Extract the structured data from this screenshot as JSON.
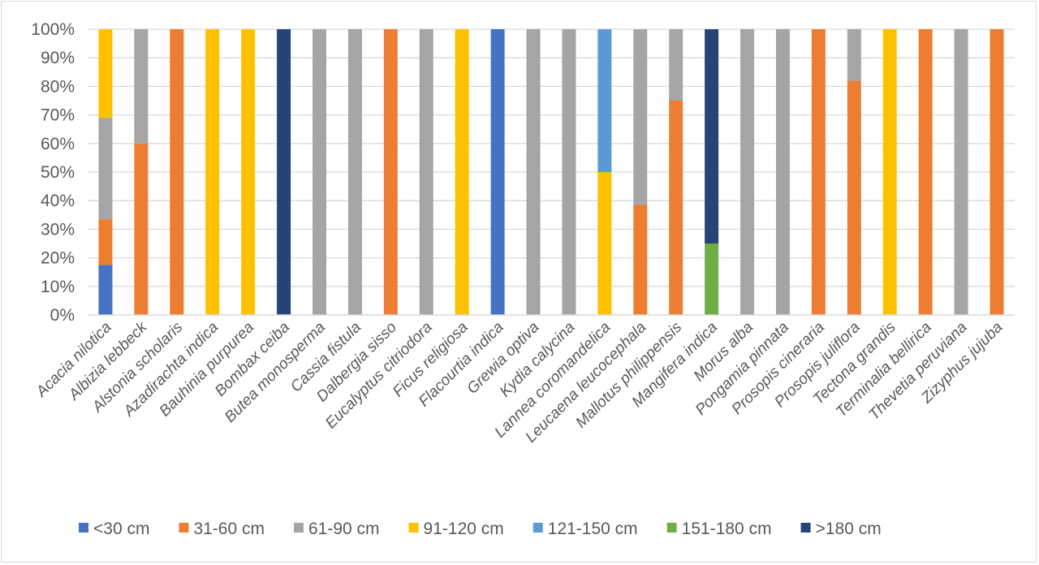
{
  "chart_data": {
    "type": "bar",
    "stacked": "percent",
    "title": "",
    "xlabel": "",
    "ylabel": "",
    "ylim": [
      0,
      100
    ],
    "yticks": [
      "0%",
      "10%",
      "20%",
      "30%",
      "40%",
      "50%",
      "60%",
      "70%",
      "80%",
      "90%",
      "100%"
    ],
    "grid": true,
    "legend_position": "bottom",
    "categories": [
      "Acacia nilotica",
      "Albizia lebbeck",
      "Alstonia scholaris",
      "Azadirachta indica",
      "Bauhinia purpurea",
      "Bombax ceiba",
      "Butea monosperma",
      "Cassia fistula",
      "Dalbergia sisso",
      "Eucalyptus citriodora",
      "Ficus religiosa",
      "Flacourtia indica",
      "Grewia optiva",
      "Kydia calycina",
      "Lannea coromandelica",
      "Leucaena leucocephala",
      "Mallotus philippensis",
      "Mangifera indica",
      "Morus alba",
      "Pongamia pinnata",
      "Prosopis cineraria",
      "Prosopis juliflora",
      "Tectona grandis",
      "Terminalia bellirica",
      "Thevetia peruviana",
      "Zizyphus jujuba"
    ],
    "series": [
      {
        "name": "<30 cm",
        "color": "#4472c4",
        "values": [
          17.5,
          0,
          0,
          0,
          0,
          0,
          0,
          0,
          0,
          0,
          0,
          100,
          0,
          0,
          0,
          0,
          0,
          0,
          0,
          0,
          0,
          0,
          0,
          0,
          0,
          0
        ]
      },
      {
        "name": "31-60 cm",
        "color": "#ed7d31",
        "values": [
          16,
          60,
          100,
          0,
          0,
          0,
          0,
          0,
          100,
          0,
          0,
          0,
          0,
          0,
          0,
          38.5,
          75,
          0,
          0,
          0,
          100,
          82,
          0,
          100,
          0,
          100
        ]
      },
      {
        "name": "61-90 cm",
        "color": "#a5a5a5",
        "values": [
          35.5,
          40,
          0,
          0,
          0,
          0,
          100,
          100,
          0,
          100,
          0,
          0,
          100,
          100,
          0,
          61.5,
          25,
          0,
          100,
          100,
          0,
          18,
          0,
          0,
          100,
          0
        ]
      },
      {
        "name": "91-120 cm",
        "color": "#ffc000",
        "values": [
          31,
          0,
          0,
          100,
          100,
          0,
          0,
          0,
          0,
          0,
          100,
          0,
          0,
          0,
          50,
          0,
          0,
          0,
          0,
          0,
          0,
          0,
          100,
          0,
          0,
          0
        ]
      },
      {
        "name": "121-150 cm",
        "color": "#5b9bd5",
        "values": [
          0,
          0,
          0,
          0,
          0,
          0,
          0,
          0,
          0,
          0,
          0,
          0,
          0,
          0,
          50,
          0,
          0,
          0,
          0,
          0,
          0,
          0,
          0,
          0,
          0,
          0
        ]
      },
      {
        "name": "151-180 cm",
        "color": "#70ad47",
        "values": [
          0,
          0,
          0,
          0,
          0,
          0,
          0,
          0,
          0,
          0,
          0,
          0,
          0,
          0,
          0,
          0,
          0,
          25,
          0,
          0,
          0,
          0,
          0,
          0,
          0,
          0
        ]
      },
      {
        "name": ">180 cm",
        "color": "#264478",
        "values": [
          0,
          0,
          0,
          0,
          0,
          100,
          0,
          0,
          0,
          0,
          0,
          0,
          0,
          0,
          0,
          0,
          0,
          75,
          0,
          0,
          0,
          0,
          0,
          0,
          0,
          0
        ]
      }
    ]
  }
}
